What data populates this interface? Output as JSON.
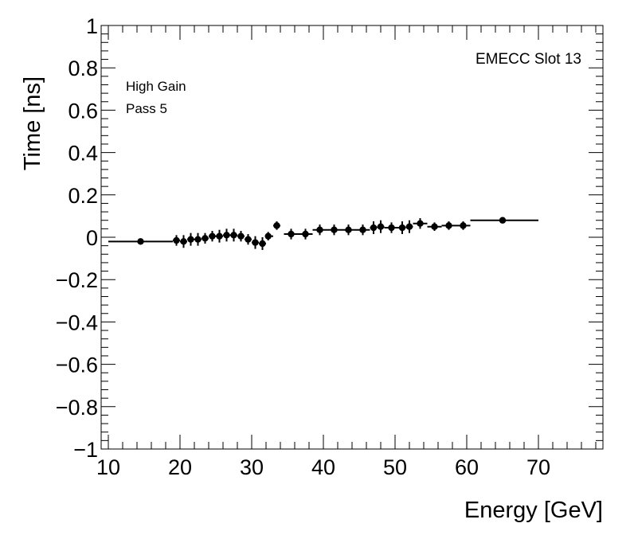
{
  "chart_data": {
    "type": "scatter",
    "title": "",
    "xlabel": "Energy [GeV]",
    "ylabel": "Time [ns]",
    "xlim": [
      9,
      79
    ],
    "ylim": [
      -1,
      1
    ],
    "xticks": [
      10,
      20,
      30,
      40,
      50,
      60,
      70
    ],
    "yticks": [
      1,
      0.8,
      0.6,
      0.4,
      0.2,
      0,
      -0.2,
      -0.4,
      -0.6,
      -0.8,
      -1
    ],
    "ytick_labels": [
      "1",
      "0.8",
      "0.6",
      "0.4",
      "0.2",
      "0",
      "−0.2",
      "−0.4",
      "−0.6",
      "−0.8",
      "−1"
    ],
    "annotations": {
      "gain": "High Gain",
      "pass": "Pass 5",
      "slot": "EMECC Slot 13"
    },
    "series": [
      {
        "name": "EMECC Slot 13",
        "x": [
          14.5,
          19.5,
          20.5,
          21.5,
          22.5,
          23.5,
          24.5,
          25.5,
          26.5,
          27.5,
          28.5,
          29.5,
          30.5,
          31.5,
          32.3,
          33.5,
          35.5,
          37.5,
          39.5,
          41.5,
          43.5,
          45.5,
          47.0,
          48.0,
          49.5,
          51.0,
          52.0,
          53.5,
          55.5,
          57.5,
          59.5,
          65.0
        ],
        "y": [
          -0.02,
          -0.015,
          -0.02,
          -0.01,
          -0.01,
          -0.005,
          0.005,
          0.005,
          0.01,
          0.01,
          0.005,
          -0.01,
          -0.025,
          -0.03,
          0.005,
          0.055,
          0.015,
          0.015,
          0.035,
          0.035,
          0.035,
          0.035,
          0.045,
          0.05,
          0.045,
          0.045,
          0.05,
          0.065,
          0.05,
          0.055,
          0.055,
          0.08
        ],
        "xerr_low": [
          4.5,
          0.5,
          0.5,
          0.5,
          0.5,
          0.5,
          0.5,
          0.5,
          0.5,
          0.5,
          0.5,
          0.5,
          0.5,
          0.5,
          0.3,
          0.5,
          1.0,
          1.0,
          1.0,
          1.0,
          1.0,
          1.0,
          0.5,
          0.5,
          1.0,
          0.5,
          0.5,
          1.0,
          1.0,
          1.0,
          1.0,
          4.5
        ],
        "xerr_high": [
          4.5,
          0.5,
          0.5,
          0.5,
          0.5,
          0.5,
          0.5,
          0.5,
          0.5,
          0.5,
          0.5,
          0.5,
          0.5,
          0.5,
          0.7,
          0.5,
          1.0,
          1.0,
          1.0,
          1.0,
          1.0,
          1.0,
          0.5,
          0.5,
          1.0,
          0.5,
          0.5,
          1.0,
          1.0,
          1.0,
          1.0,
          5.0
        ],
        "yerr": [
          0.005,
          0.025,
          0.03,
          0.03,
          0.03,
          0.025,
          0.025,
          0.03,
          0.03,
          0.03,
          0.025,
          0.025,
          0.03,
          0.03,
          0.02,
          0.02,
          0.025,
          0.025,
          0.025,
          0.025,
          0.025,
          0.025,
          0.03,
          0.03,
          0.025,
          0.03,
          0.03,
          0.025,
          0.02,
          0.02,
          0.02,
          0.005
        ]
      }
    ]
  }
}
